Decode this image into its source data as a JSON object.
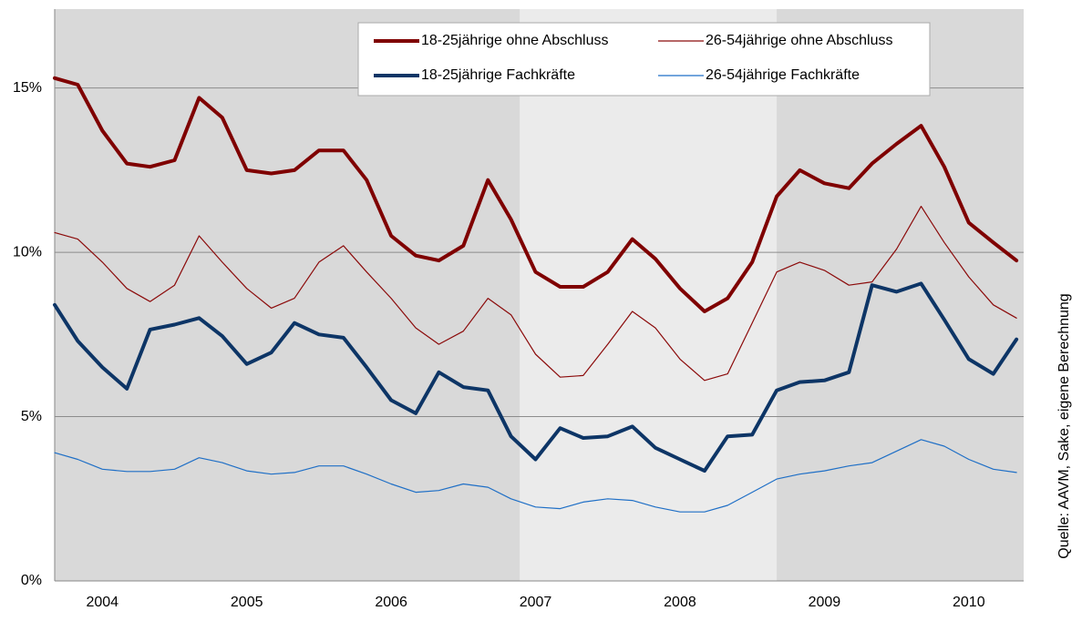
{
  "chart_data": {
    "type": "line",
    "source": "Quelle: AAVM, Sake, eigene Berechnung",
    "x": [
      2004.17,
      2004.33,
      2004.5,
      2004.67,
      2004.83,
      2005.0,
      2005.17,
      2005.33,
      2005.5,
      2005.67,
      2005.83,
      2006.0,
      2006.17,
      2006.33,
      2006.5,
      2006.67,
      2006.83,
      2007.0,
      2007.17,
      2007.33,
      2007.5,
      2007.67,
      2007.83,
      2008.0,
      2008.17,
      2008.33,
      2008.5,
      2008.67,
      2008.83,
      2009.0,
      2009.17,
      2009.33,
      2009.5,
      2009.67,
      2009.83,
      2010.0,
      2010.17,
      2010.33,
      2010.5,
      2010.67,
      2010.83
    ],
    "series": [
      {
        "name": "18-25jährige ohne Abschluss",
        "color": "#7f0000",
        "width": 4,
        "values": [
          15.3,
          15.1,
          13.7,
          12.7,
          12.6,
          12.8,
          14.7,
          14.1,
          12.5,
          12.4,
          12.5,
          13.1,
          13.1,
          12.2,
          10.5,
          9.9,
          9.75,
          10.2,
          12.2,
          11.0,
          9.4,
          8.95,
          8.95,
          9.4,
          10.4,
          9.8,
          8.9,
          8.2,
          8.6,
          9.7,
          11.7,
          12.5,
          12.1,
          11.95,
          12.7,
          13.3,
          13.85,
          12.6,
          10.9,
          10.3,
          9.75
        ]
      },
      {
        "name": "26-54jährige ohne Abschluss",
        "color": "#8b0a0a",
        "width": 1.2,
        "values": [
          10.6,
          10.4,
          9.7,
          8.9,
          8.5,
          9.0,
          10.5,
          9.7,
          8.9,
          8.3,
          8.6,
          9.7,
          10.2,
          9.4,
          8.6,
          7.7,
          7.2,
          7.6,
          8.6,
          8.1,
          6.9,
          6.2,
          6.25,
          7.2,
          8.2,
          7.7,
          6.75,
          6.1,
          6.3,
          7.85,
          9.4,
          9.7,
          9.45,
          9.0,
          9.1,
          10.1,
          11.4,
          10.3,
          9.25,
          8.4,
          8.0
        ]
      },
      {
        "name": "18-25jährige Fachkräfte",
        "color": "#0d3566",
        "width": 4,
        "values": [
          8.4,
          7.3,
          6.5,
          5.85,
          7.65,
          7.8,
          8.0,
          7.45,
          6.6,
          6.95,
          7.85,
          7.5,
          7.4,
          6.5,
          5.5,
          5.1,
          6.35,
          5.9,
          5.8,
          4.4,
          3.7,
          4.65,
          4.35,
          4.4,
          4.7,
          4.05,
          3.7,
          3.35,
          4.4,
          4.45,
          5.8,
          6.05,
          6.1,
          6.35,
          9.0,
          8.8,
          9.05,
          7.95,
          6.75,
          6.3,
          7.35
        ]
      },
      {
        "name": "26-54jährige Fachkräfte",
        "color": "#1f6fc6",
        "width": 1.2,
        "values": [
          3.9,
          3.7,
          3.4,
          3.33,
          3.33,
          3.4,
          3.75,
          3.6,
          3.35,
          3.25,
          3.3,
          3.5,
          3.5,
          3.25,
          2.95,
          2.7,
          2.75,
          2.95,
          2.85,
          2.5,
          2.25,
          2.2,
          2.4,
          2.5,
          2.45,
          2.25,
          2.1,
          2.1,
          2.3,
          2.7,
          3.1,
          3.25,
          3.35,
          3.5,
          3.6,
          3.95,
          4.3,
          4.1,
          3.7,
          3.4,
          3.3
        ]
      }
    ],
    "xlim": [
      2004.17,
      2010.88
    ],
    "xticks": [
      {
        "value": 2004.5,
        "label": "2004"
      },
      {
        "value": 2005.5,
        "label": "2005"
      },
      {
        "value": 2006.5,
        "label": "2006"
      },
      {
        "value": 2007.5,
        "label": "2007"
      },
      {
        "value": 2008.5,
        "label": "2008"
      },
      {
        "value": 2009.5,
        "label": "2009"
      },
      {
        "value": 2010.5,
        "label": "2010"
      }
    ],
    "ylim": [
      0,
      17.4
    ],
    "yticks": [
      {
        "value": 0,
        "label": "0%"
      },
      {
        "value": 5,
        "label": "5%"
      },
      {
        "value": 10,
        "label": "10%"
      },
      {
        "value": 15,
        "label": "15%"
      }
    ],
    "grid": true,
    "background": "#d9d9d9",
    "highlight": {
      "xlim": [
        2007.39,
        2009.17
      ],
      "color": "#ebebeb"
    }
  }
}
